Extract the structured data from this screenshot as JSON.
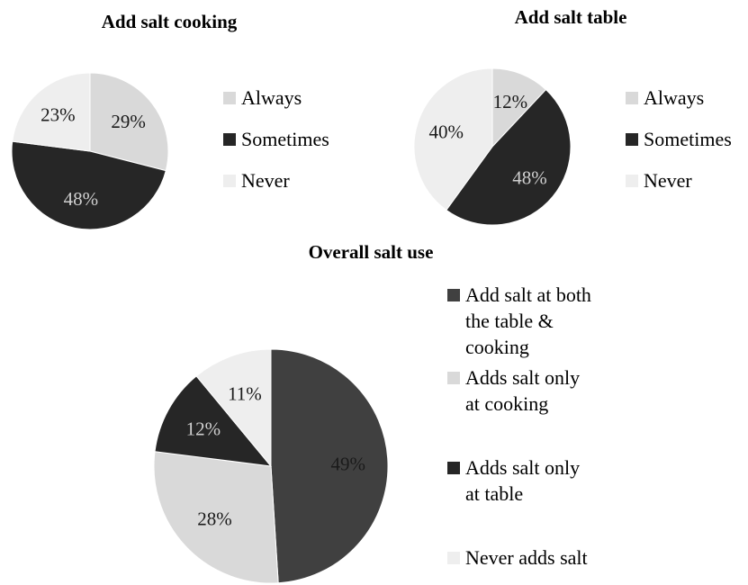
{
  "chart_data": [
    {
      "type": "pie",
      "title": "Add salt cooking",
      "categories": [
        "Always",
        "Sometimes",
        "Never"
      ],
      "values": [
        29,
        48,
        23
      ],
      "labels": [
        "29%",
        "48%",
        "23%"
      ],
      "colors": [
        "#d9d9d9",
        "#262626",
        "#eeeeee"
      ],
      "label_colors": [
        "#1a1a1a",
        "#cfcfcf",
        "#1a1a1a"
      ],
      "legend": "right"
    },
    {
      "type": "pie",
      "title": "Add salt table",
      "categories": [
        "Always",
        "Sometimes",
        "Never"
      ],
      "values": [
        12,
        48,
        40
      ],
      "labels": [
        "12%",
        "48%",
        "40%"
      ],
      "colors": [
        "#d9d9d9",
        "#262626",
        "#eeeeee"
      ],
      "label_colors": [
        "#1a1a1a",
        "#cfcfcf",
        "#1a1a1a"
      ],
      "legend": "right"
    },
    {
      "type": "pie",
      "title": "Overall salt use",
      "categories": [
        "Add salt at both the table & cooking",
        "Adds salt only at cooking",
        "Adds salt only at table",
        "Never adds salt"
      ],
      "legend_lines": [
        [
          "Add salt at both",
          "the table &",
          "cooking"
        ],
        [
          "Adds salt only",
          "at cooking"
        ],
        [
          "Adds salt only",
          "at table"
        ],
        [
          "Never adds salt"
        ]
      ],
      "values": [
        49,
        28,
        12,
        11
      ],
      "labels": [
        "49%",
        "28%",
        "12%",
        "11%"
      ],
      "colors": [
        "#404040",
        "#d9d9d9",
        "#262626",
        "#eeeeee"
      ],
      "label_colors": [
        "#1a1a1a",
        "#1a1a1a",
        "#cfcfcf",
        "#1a1a1a"
      ],
      "legend": "right"
    }
  ]
}
